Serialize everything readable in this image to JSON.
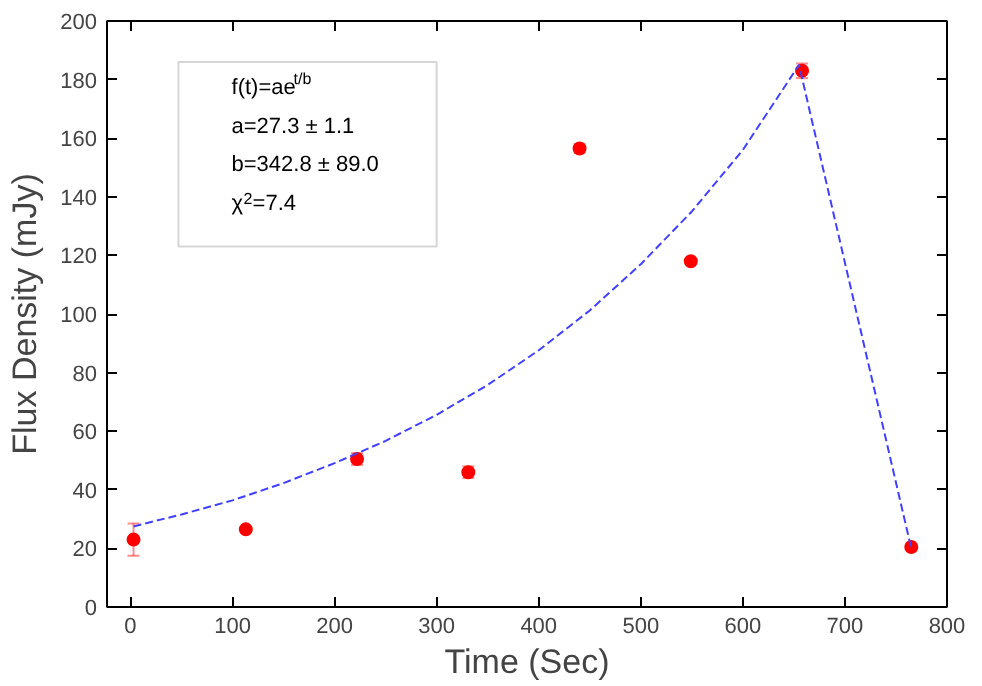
{
  "chart_data": {
    "type": "scatter",
    "xlabel": "Time (Sec)",
    "ylabel": "Flux Density (mJy)",
    "xlim": [
      -23,
      800
    ],
    "ylim": [
      0,
      200
    ],
    "xticks": [
      0,
      100,
      200,
      300,
      400,
      500,
      600,
      700,
      800
    ],
    "yticks": [
      0,
      20,
      40,
      60,
      80,
      100,
      120,
      140,
      160,
      180,
      200
    ],
    "grid": false,
    "annotations": [
      "f(t)=ae$^{t/b}$",
      "a=27.3 ± 1.1",
      "b=342.8 ± 89.0",
      "χ$^{2}$=7.4"
    ],
    "series": [
      {
        "color": "#ff0000",
        "marker": "circle",
        "x": [
          3,
          113,
          222,
          331,
          440,
          549,
          658,
          765
        ],
        "values": [
          23,
          26.5,
          50.5,
          46,
          156.5,
          118,
          183,
          20.5
        ],
        "errors": [
          5.5,
          null,
          2,
          2,
          1.5,
          null,
          2.5,
          null
        ]
      },
      {
        "type": "line",
        "color": "#4040ff",
        "line_style": "dashed",
        "marker": "none",
        "x": [
          3,
          50,
          100,
          150,
          200,
          250,
          300,
          350,
          400,
          450,
          500,
          550,
          600,
          655,
          765
        ],
        "values": [
          27.5,
          31.6,
          36.4,
          42.3,
          49.1,
          56.7,
          65.6,
          75.8,
          87.6,
          101.2,
          117,
          135,
          156,
          185,
          20
        ]
      }
    ]
  }
}
